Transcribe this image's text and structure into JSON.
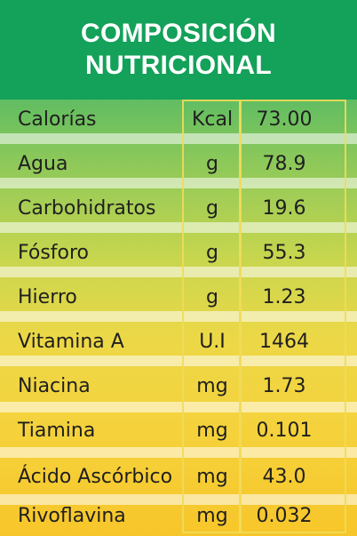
{
  "title": {
    "line1": "COMPOSICIÓN",
    "line2": "NUTRICIONAL"
  },
  "rows": [
    {
      "name": "Calorías",
      "unit": "Kcal",
      "value": "73.00"
    },
    {
      "name": "Agua",
      "unit": "g",
      "value": "78.9"
    },
    {
      "name": "Carbohidratos",
      "unit": "g",
      "value": "19.6"
    },
    {
      "name": "Fósforo",
      "unit": "g",
      "value": "55.3"
    },
    {
      "name": "Hierro",
      "unit": "g",
      "value": "1.23"
    },
    {
      "name": "Vitamina A",
      "unit": "U.I",
      "value": "1464"
    },
    {
      "name": "Niacina",
      "unit": "mg",
      "value": "1.73"
    },
    {
      "name": "Tiamina",
      "unit": "mg",
      "value": "0.101"
    },
    {
      "name": "Ácido Ascórbico",
      "unit": "mg",
      "value": "43.0"
    },
    {
      "name": "Rivoflavina",
      "unit": "mg",
      "value": "0.032"
    }
  ]
}
